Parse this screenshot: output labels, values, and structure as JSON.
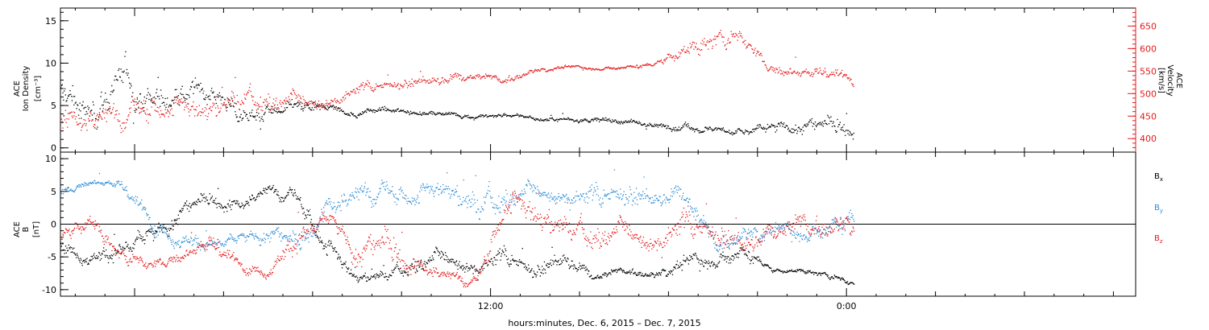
{
  "chart_data": [
    {
      "type": "scatter",
      "panel": "top",
      "left_axis": {
        "label_lines": [
          "ACE",
          "Ion Density",
          "[cm⁻³]"
        ],
        "ticks": [
          "0",
          "5",
          "10",
          "15"
        ],
        "ylim": [
          -0.5,
          16.5
        ],
        "color": "#000000"
      },
      "right_axis": {
        "label_lines": [
          "ACE",
          "Velocity",
          "[km/s]"
        ],
        "ticks": [
          "400",
          "450",
          "500",
          "550",
          "600",
          "650"
        ],
        "ylim": [
          370,
          690
        ],
        "color": "#e41a1c"
      },
      "x_range_hours": [
        -2.5,
        33.75
      ],
      "series": [
        {
          "axis": "left",
          "color": "#000000",
          "kp": [
            [
              -2.5,
              6.2
            ],
            [
              -1.5,
              4.5
            ],
            [
              -0.5,
              8.5
            ],
            [
              0.5,
              5.8
            ],
            [
              1.5,
              6.5
            ],
            [
              2.5,
              6.8
            ],
            [
              3.5,
              4.2
            ],
            [
              4.5,
              4.0
            ],
            [
              5.5,
              4.8
            ],
            [
              6.5,
              4.5
            ],
            [
              7.5,
              4.2
            ],
            [
              8.5,
              4.5
            ],
            [
              9.5,
              4.3
            ],
            [
              10.5,
              4.0
            ],
            [
              11.5,
              3.8
            ],
            [
              12.5,
              3.9
            ],
            [
              13.5,
              3.5
            ],
            [
              14.5,
              3.3
            ],
            [
              15.5,
              3.5
            ],
            [
              16.5,
              3.2
            ],
            [
              17.5,
              2.8
            ],
            [
              18.5,
              2.5
            ],
            [
              19.5,
              2.3
            ],
            [
              20.5,
              2.1
            ],
            [
              21.5,
              2.4
            ],
            [
              22.5,
              2.6
            ],
            [
              23.5,
              2.8
            ],
            [
              24.25,
              2.4
            ]
          ],
          "noise": [
            2.2,
            2.0,
            2.6,
            1.6,
            1.8,
            1.4,
            1.2,
            1.0,
            1.0,
            0.6,
            0.4,
            0.4,
            0.3,
            0.3,
            0.3,
            0.3,
            0.3,
            0.3,
            0.4,
            0.4,
            0.4,
            0.5,
            0.5,
            0.5,
            0.8,
            1.0,
            1.0,
            0.9
          ],
          "step": 0.022
        },
        {
          "axis": "right",
          "color": "#e41a1c",
          "kp": [
            [
              -2.5,
              445
            ],
            [
              -1.5,
              440
            ],
            [
              -0.5,
              445
            ],
            [
              0.5,
              470
            ],
            [
              1.5,
              465
            ],
            [
              2.5,
              470
            ],
            [
              3.5,
              480
            ],
            [
              4.5,
              485
            ],
            [
              5.5,
              482
            ],
            [
              6.5,
              490
            ],
            [
              7.5,
              510
            ],
            [
              8.5,
              520
            ],
            [
              9.5,
              528
            ],
            [
              10.5,
              535
            ],
            [
              11.5,
              540
            ],
            [
              12.5,
              530
            ],
            [
              13.5,
              550
            ],
            [
              14.5,
              560
            ],
            [
              15.5,
              558
            ],
            [
              16.5,
              560
            ],
            [
              17.5,
              565
            ],
            [
              18.5,
              600
            ],
            [
              19.5,
              615
            ],
            [
              20.5,
              625
            ],
            [
              21.5,
              555
            ],
            [
              22.5,
              545
            ],
            [
              23.5,
              545
            ],
            [
              24.25,
              530
            ]
          ],
          "noise": [
            28,
            34,
            30,
            34,
            30,
            28,
            26,
            24,
            22,
            20,
            14,
            12,
            12,
            14,
            8,
            10,
            6,
            5,
            5,
            5,
            6,
            22,
            26,
            20,
            14,
            14,
            14,
            12
          ],
          "step": 0.022
        }
      ]
    },
    {
      "type": "scatter",
      "panel": "bottom",
      "left_axis": {
        "label_lines": [
          "ACE",
          "B",
          "[nT]"
        ],
        "ticks": [
          "-10",
          "-5",
          "0",
          "5",
          "10"
        ],
        "ylim": [
          -11,
          11
        ]
      },
      "zero_line": true,
      "x_range_hours": [
        -2.5,
        33.75
      ],
      "series": [
        {
          "name": "Bx",
          "color": "#000000",
          "kp": [
            [
              -2.5,
              -3
            ],
            [
              -1.5,
              -5
            ],
            [
              -0.5,
              -4
            ],
            [
              0.5,
              -3
            ],
            [
              1.5,
              2
            ],
            [
              2.5,
              4
            ],
            [
              3.5,
              3
            ],
            [
              4.5,
              5
            ],
            [
              5.5,
              4
            ],
            [
              6.5,
              -4
            ],
            [
              7.5,
              -8
            ],
            [
              8.5,
              -8
            ],
            [
              9.5,
              -6
            ],
            [
              10.5,
              -5
            ],
            [
              11.5,
              -6
            ],
            [
              12.5,
              -5
            ],
            [
              13.5,
              -7
            ],
            [
              14.5,
              -5
            ],
            [
              15.5,
              -8
            ],
            [
              16.5,
              -7
            ],
            [
              17.5,
              -8
            ],
            [
              18.5,
              -6
            ],
            [
              19.5,
              -5
            ],
            [
              20.5,
              -4
            ],
            [
              21.5,
              -7
            ],
            [
              22.5,
              -7
            ],
            [
              23.5,
              -8
            ],
            [
              24.25,
              -9
            ]
          ],
          "noise": [
            1.2,
            1.0,
            1.5,
            2.0,
            1.5,
            1.0,
            1.2,
            1.0,
            1.2,
            2.0,
            0.8,
            0.8,
            1.5,
            1.5,
            1.5,
            1.5,
            1.2,
            1.5,
            0.6,
            0.6,
            0.6,
            1.5,
            1.5,
            1.5,
            0.4,
            0.4,
            0.5,
            0.5
          ],
          "step": 0.02
        },
        {
          "name": "By",
          "color": "#2b8cd6",
          "kp": [
            [
              -2.5,
              5
            ],
            [
              -1.5,
              6.5
            ],
            [
              -0.5,
              6
            ],
            [
              0.5,
              1
            ],
            [
              1.5,
              -2
            ],
            [
              2.5,
              -3
            ],
            [
              3.5,
              -3
            ],
            [
              4.5,
              -1
            ],
            [
              5.5,
              -3
            ],
            [
              6.5,
              3
            ],
            [
              7.5,
              4
            ],
            [
              8.5,
              5
            ],
            [
              9.5,
              4
            ],
            [
              10.5,
              6
            ],
            [
              11.5,
              2
            ],
            [
              12.5,
              4
            ],
            [
              13.5,
              5
            ],
            [
              14.5,
              5
            ],
            [
              15.5,
              4
            ],
            [
              16.5,
              5
            ],
            [
              17.5,
              4
            ],
            [
              18.5,
              5
            ],
            [
              19.5,
              -3
            ],
            [
              20.5,
              -2
            ],
            [
              21.5,
              -1
            ],
            [
              22.5,
              -1
            ],
            [
              23.5,
              0
            ],
            [
              24.25,
              1
            ]
          ],
          "noise": [
            0.8,
            0.5,
            0.8,
            1.5,
            1.2,
            1.0,
            1.2,
            1.5,
            1.5,
            2.0,
            2.0,
            1.5,
            2.0,
            1.5,
            2.5,
            2.0,
            1.5,
            1.5,
            2.0,
            2.0,
            1.5,
            1.5,
            2.0,
            1.5,
            1.5,
            1.5,
            2.0,
            2.0
          ],
          "step": 0.02
        },
        {
          "name": "Bz",
          "color": "#e41a1c",
          "kp": [
            [
              -2.5,
              -2
            ],
            [
              -1.5,
              1
            ],
            [
              -0.5,
              -5
            ],
            [
              0.5,
              -6
            ],
            [
              1.5,
              -5
            ],
            [
              2.5,
              -3
            ],
            [
              3.5,
              -6
            ],
            [
              4.5,
              -7
            ],
            [
              5.5,
              -2
            ],
            [
              6.5,
              0
            ],
            [
              7.5,
              -4
            ],
            [
              8.5,
              -3
            ],
            [
              9.5,
              -6
            ],
            [
              10.5,
              -8
            ],
            [
              11.5,
              -9
            ],
            [
              12.5,
              3
            ],
            [
              13.5,
              2
            ],
            [
              14.5,
              -1
            ],
            [
              15.5,
              -2
            ],
            [
              16.5,
              -1
            ],
            [
              17.5,
              -2
            ],
            [
              18.5,
              0
            ],
            [
              19.5,
              -1
            ],
            [
              20.5,
              -3
            ],
            [
              21.5,
              -1
            ],
            [
              22.5,
              0
            ],
            [
              23.5,
              -1
            ],
            [
              24.25,
              0
            ]
          ],
          "noise": [
            1.5,
            1.5,
            1.2,
            1.0,
            1.0,
            1.5,
            1.0,
            0.8,
            2.0,
            1.5,
            2.5,
            2.5,
            1.5,
            1.0,
            0.8,
            2.5,
            2.5,
            2.0,
            2.0,
            2.0,
            2.0,
            2.5,
            2.0,
            2.0,
            1.5,
            2.0,
            2.0,
            2.0
          ],
          "step": 0.02
        }
      ],
      "legend": [
        {
          "base": "B",
          "sub": "x",
          "color": "#000000"
        },
        {
          "base": "B",
          "sub": "y",
          "color": "#2b8cd6"
        },
        {
          "base": "B",
          "sub": "z",
          "color": "#e41a1c"
        }
      ]
    }
  ],
  "x_axis": {
    "tick_labels": [
      {
        "label": "12:00",
        "hour": 12
      },
      {
        "label": "0:00",
        "hour": 24
      }
    ],
    "xlabel": "hours:minutes, Dec.  6, 2015 – Dec.  7, 2015"
  }
}
